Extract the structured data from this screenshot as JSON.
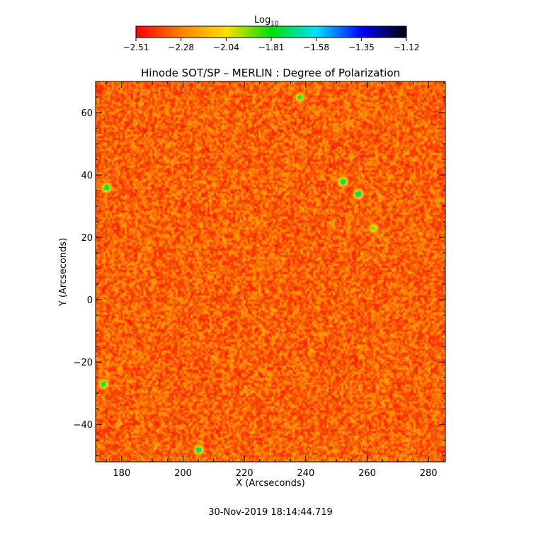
{
  "chart_data": {
    "type": "heatmap",
    "title": "Hinode SOT/SP – MERLIN : Degree of Polarization",
    "xlabel": "X (Arcseconds)",
    "ylabel": "Y (Arcseconds)",
    "xlim": [
      171.5,
      285.5
    ],
    "ylim": [
      -52,
      70
    ],
    "x_ticks": [
      180,
      200,
      220,
      240,
      260,
      280
    ],
    "y_ticks": [
      -40,
      -20,
      0,
      20,
      40,
      60
    ],
    "colorbar": {
      "label_main": "Log",
      "label_sub": "10",
      "range": [
        -2.51,
        -1.12
      ],
      "ticks": [
        "−2.51",
        "−2.28",
        "−2.04",
        "−1.81",
        "−1.58",
        "−1.35",
        "−1.12"
      ],
      "colormap": [
        "#ff0000",
        "#ff8000",
        "#ffe000",
        "#00e000",
        "#00e0ff",
        "#0000ff",
        "#000000"
      ]
    },
    "typical_value_range": [
      -2.51,
      -2.1
    ],
    "high_value_features": [
      {
        "x": 252,
        "y": 38,
        "level": -1.4
      },
      {
        "x": 257,
        "y": 34,
        "level": -1.35
      },
      {
        "x": 175,
        "y": 36,
        "level": -1.45
      },
      {
        "x": 205,
        "y": -48,
        "level": -1.4
      },
      {
        "x": 174,
        "y": -27,
        "level": -1.5
      },
      {
        "x": 262,
        "y": 23,
        "level": -1.7
      },
      {
        "x": 238,
        "y": 65,
        "level": -1.6
      }
    ]
  },
  "footer": {
    "timestamp": "30-Nov-2019 18:14:44.719"
  }
}
